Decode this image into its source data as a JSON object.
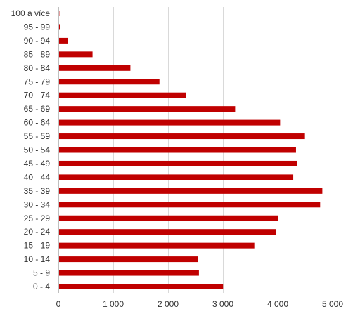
{
  "chart_data": {
    "type": "bar",
    "orientation": "horizontal",
    "title": "",
    "xlabel": "",
    "ylabel": "",
    "categories": [
      "100 a více",
      "95 - 99",
      "90 - 94",
      "85 - 89",
      "80 - 84",
      "75 - 79",
      "70 - 74",
      "65 - 69",
      "60 - 64",
      "55 - 59",
      "50 - 54",
      "45 - 49",
      "40 - 44",
      "35 - 39",
      "30 - 34",
      "25 - 29",
      "20 - 24",
      "15 - 19",
      "10 - 14",
      "5 - 9",
      "0 - 4"
    ],
    "values": [
      5,
      25,
      160,
      610,
      1300,
      1830,
      2320,
      3210,
      4030,
      4470,
      4320,
      4340,
      4270,
      4800,
      4760,
      3990,
      3960,
      3560,
      2530,
      2550,
      2990
    ],
    "xlim": [
      0,
      5000
    ],
    "xticks": [
      0,
      1000,
      2000,
      3000,
      4000,
      5000
    ],
    "xtick_labels": [
      "0",
      "1 000",
      "2 000",
      "3 000",
      "4 000",
      "5 000"
    ],
    "grid": true,
    "legend": "none",
    "bar_color": "#c00000"
  }
}
